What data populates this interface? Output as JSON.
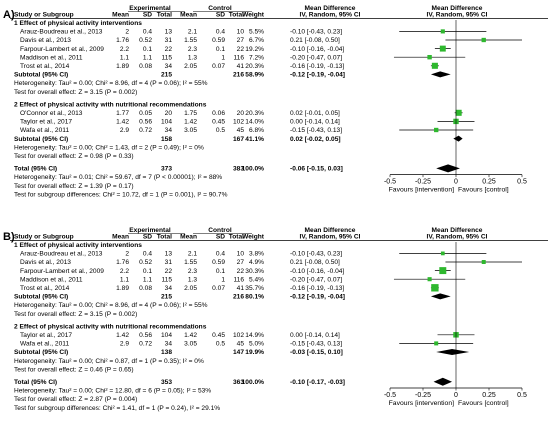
{
  "header": {
    "study_or_subgroup": "Study or Subgroup",
    "experimental": "Experimental",
    "control": "Control",
    "mean": "Mean",
    "sd": "SD",
    "total": "Total",
    "weight": "Weight",
    "md": "Mean Difference",
    "md_method": "IV, Random, 95% CI"
  },
  "axis": {
    "ticks": [
      "-0.5",
      "-0.25",
      "0",
      "0.25",
      "0.5"
    ],
    "tick_values": [
      -0.5,
      -0.25,
      0,
      0.25,
      0.5
    ],
    "left_label": "Favours [intervention]",
    "right_label": "Favours [control]",
    "range": [
      -0.5,
      0.5
    ]
  },
  "colors": {
    "point": "#2eb82e",
    "diamond": "#000000",
    "line": "#000000"
  },
  "chart_data": [
    {
      "type": "forest",
      "panel_label": "A)",
      "xlim": [
        -0.5,
        0.5
      ],
      "subgroups": [
        {
          "title": "1 Effect of physical activity interventions",
          "studies": [
            {
              "name": "Arauz-Boudreau et al., 2013",
              "e_mean": "2",
              "e_sd": "0.4",
              "e_total": "13",
              "c_mean": "2.1",
              "c_sd": "0.4",
              "c_total": "10",
              "weight": "5.5%",
              "ci": "-0.10 [-0.43, 0.23]",
              "md": -0.1,
              "lo": -0.43,
              "hi": 0.23
            },
            {
              "name": "Davis et al., 2013",
              "e_mean": "1.76",
              "e_sd": "0.52",
              "e_total": "31",
              "c_mean": "1.55",
              "c_sd": "0.59",
              "c_total": "27",
              "weight": "6.7%",
              "ci": "0.21 [-0.08, 0.50]",
              "md": 0.21,
              "lo": -0.08,
              "hi": 0.5
            },
            {
              "name": "Farpour-Lambert et al., 2009",
              "e_mean": "2.2",
              "e_sd": "0.1",
              "e_total": "22",
              "c_mean": "2.3",
              "c_sd": "0.1",
              "c_total": "22",
              "weight": "19.2%",
              "ci": "-0.10 [-0.16, -0.04]",
              "md": -0.1,
              "lo": -0.16,
              "hi": -0.04
            },
            {
              "name": "Maddison et al., 2011",
              "e_mean": "1.1",
              "e_sd": "1.1",
              "e_total": "115",
              "c_mean": "1.3",
              "c_sd": "1",
              "c_total": "116",
              "weight": "7.2%",
              "ci": "-0.20 [-0.47, 0.07]",
              "md": -0.2,
              "lo": -0.47,
              "hi": 0.07
            },
            {
              "name": "Trost et al., 2014",
              "e_mean": "1.89",
              "e_sd": "0.08",
              "e_total": "34",
              "c_mean": "2.05",
              "c_sd": "0.07",
              "c_total": "41",
              "weight": "20.3%",
              "ci": "-0.16 [-0.19, -0.13]",
              "md": -0.16,
              "lo": -0.19,
              "hi": -0.13
            }
          ],
          "subtotal": {
            "label": "Subtotal (95% CI)",
            "e_total": "215",
            "c_total": "216",
            "weight": "58.9%",
            "ci": "-0.12 [-0.19, -0.04]",
            "md": -0.12,
            "lo": -0.19,
            "hi": -0.04
          },
          "heterogeneity": "Heterogeneity: Tau² = 0.00; Chi² = 8.96, df = 4 (P = 0.06); I² = 55%",
          "overall_effect": "Test for overall effect: Z = 3.15 (P = 0.002)"
        },
        {
          "title": "2 Effect of physical activity with nutritional recommendations",
          "studies": [
            {
              "name": "O'Connor et al., 2013",
              "e_mean": "1.77",
              "e_sd": "0.05",
              "e_total": "20",
              "c_mean": "1.75",
              "c_sd": "0.06",
              "c_total": "20",
              "weight": "20.3%",
              "ci": "0.02 [-0.01, 0.05]",
              "md": 0.02,
              "lo": -0.01,
              "hi": 0.05
            },
            {
              "name": "Taylor et al., 2017",
              "e_mean": "1.42",
              "e_sd": "0.56",
              "e_total": "104",
              "c_mean": "1.42",
              "c_sd": "0.45",
              "c_total": "102",
              "weight": "14.0%",
              "ci": "0.00 [-0.14, 0.14]",
              "md": 0.0,
              "lo": -0.14,
              "hi": 0.14
            },
            {
              "name": "Wafa et al., 2011",
              "e_mean": "2.9",
              "e_sd": "0.72",
              "e_total": "34",
              "c_mean": "3.05",
              "c_sd": "0.5",
              "c_total": "45",
              "weight": "6.8%",
              "ci": "-0.15 [-0.43, 0.13]",
              "md": -0.15,
              "lo": -0.43,
              "hi": 0.13
            }
          ],
          "subtotal": {
            "label": "Subtotal (95% CI)",
            "e_total": "158",
            "c_total": "167",
            "weight": "41.1%",
            "ci": "0.02 [-0.02, 0.05]",
            "md": 0.02,
            "lo": -0.02,
            "hi": 0.05
          },
          "heterogeneity": "Heterogeneity: Tau² = 0.00; Chi² = 1.43, df = 2 (P = 0.49); I² = 0%",
          "overall_effect": "Test for overall effect: Z = 0.98 (P = 0.33)"
        }
      ],
      "total": {
        "label": "Total (95% CI)",
        "e_total": "373",
        "c_total": "383",
        "weight": "100.0%",
        "ci": "-0.06 [-0.15, 0.03]",
        "md": -0.06,
        "lo": -0.15,
        "hi": 0.03
      },
      "footer": [
        "Heterogeneity: Tau² = 0.01; Chi² = 59.67, df = 7 (P < 0.00001); I² = 88%",
        "Test for overall effect: Z = 1.39 (P = 0.17)",
        "Test for subgroup differences: Chi² = 10.72, df = 1 (P = 0.001), I² = 90.7%"
      ]
    },
    {
      "type": "forest",
      "panel_label": "B)",
      "xlim": [
        -0.5,
        0.5
      ],
      "subgroups": [
        {
          "title": "1 Effect of physical activity interventions",
          "studies": [
            {
              "name": "Arauz-Boudreau et al., 2013",
              "e_mean": "2",
              "e_sd": "0.4",
              "e_total": "13",
              "c_mean": "2.1",
              "c_sd": "0.4",
              "c_total": "10",
              "weight": "3.8%",
              "ci": "-0.10 [-0.43, 0.23]",
              "md": -0.1,
              "lo": -0.43,
              "hi": 0.23
            },
            {
              "name": "Davis et al., 2013",
              "e_mean": "1.76",
              "e_sd": "0.52",
              "e_total": "31",
              "c_mean": "1.55",
              "c_sd": "0.59",
              "c_total": "27",
              "weight": "4.9%",
              "ci": "0.21 [-0.08, 0.50]",
              "md": 0.21,
              "lo": -0.08,
              "hi": 0.5
            },
            {
              "name": "Farpour-Lambert et al., 2009",
              "e_mean": "2.2",
              "e_sd": "0.1",
              "e_total": "22",
              "c_mean": "2.3",
              "c_sd": "0.1",
              "c_total": "22",
              "weight": "30.3%",
              "ci": "-0.10 [-0.16, -0.04]",
              "md": -0.1,
              "lo": -0.16,
              "hi": -0.04
            },
            {
              "name": "Maddison et al., 2011",
              "e_mean": "1.1",
              "e_sd": "1.1",
              "e_total": "115",
              "c_mean": "1.3",
              "c_sd": "1",
              "c_total": "116",
              "weight": "5.4%",
              "ci": "-0.20 [-0.47, 0.07]",
              "md": -0.2,
              "lo": -0.47,
              "hi": 0.07
            },
            {
              "name": "Trost et al., 2014",
              "e_mean": "1.89",
              "e_sd": "0.08",
              "e_total": "34",
              "c_mean": "2.05",
              "c_sd": "0.07",
              "c_total": "41",
              "weight": "35.7%",
              "ci": "-0.16 [-0.19, -0.13]",
              "md": -0.16,
              "lo": -0.19,
              "hi": -0.13
            }
          ],
          "subtotal": {
            "label": "Subtotal (95% CI)",
            "e_total": "215",
            "c_total": "216",
            "weight": "80.1%",
            "ci": "-0.12 [-0.19, -0.04]",
            "md": -0.12,
            "lo": -0.19,
            "hi": -0.04
          },
          "heterogeneity": "Heterogeneity: Tau² = 0.00; Chi² = 8.96, df = 4 (P = 0.06); I² = 55%",
          "overall_effect": "Test for overall effect: Z = 3.15 (P = 0.002)"
        },
        {
          "title": "2 Effect of physical activity with nutritional recommendations",
          "studies": [
            {
              "name": "Taylor et al., 2017",
              "e_mean": "1.42",
              "e_sd": "0.56",
              "e_total": "104",
              "c_mean": "1.42",
              "c_sd": "0.45",
              "c_total": "102",
              "weight": "14.9%",
              "ci": "0.00 [-0.14, 0.14]",
              "md": 0.0,
              "lo": -0.14,
              "hi": 0.14
            },
            {
              "name": "Wafa et al., 2011",
              "e_mean": "2.9",
              "e_sd": "0.72",
              "e_total": "34",
              "c_mean": "3.05",
              "c_sd": "0.5",
              "c_total": "45",
              "weight": "5.0%",
              "ci": "-0.15 [-0.43, 0.13]",
              "md": -0.15,
              "lo": -0.43,
              "hi": 0.13
            }
          ],
          "subtotal": {
            "label": "Subtotal (95% CI)",
            "e_total": "138",
            "c_total": "147",
            "weight": "19.9%",
            "ci": "-0.03 [-0.15, 0.10]",
            "md": -0.03,
            "lo": -0.15,
            "hi": 0.1
          },
          "heterogeneity": "Heterogeneity: Tau² = 0.00; Chi² = 0.87, df = 1 (P = 0.35); I² = 0%",
          "overall_effect": "Test for overall effect: Z = 0.46 (P = 0.65)"
        }
      ],
      "total": {
        "label": "Total (95% CI)",
        "e_total": "353",
        "c_total": "363",
        "weight": "100.0%",
        "ci": "-0.10 [-0.17, -0.03]",
        "md": -0.1,
        "lo": -0.17,
        "hi": -0.03
      },
      "footer": [
        "Heterogeneity: Tau² = 0.00; Chi² = 12.80, df = 6 (P = 0.05); I² = 53%",
        "Test for overall effect: Z = 2.87 (P = 0.004)",
        "Test for subgroup differences: Chi² = 1.41, df = 1 (P = 0.24), I² = 29.1%"
      ]
    }
  ]
}
